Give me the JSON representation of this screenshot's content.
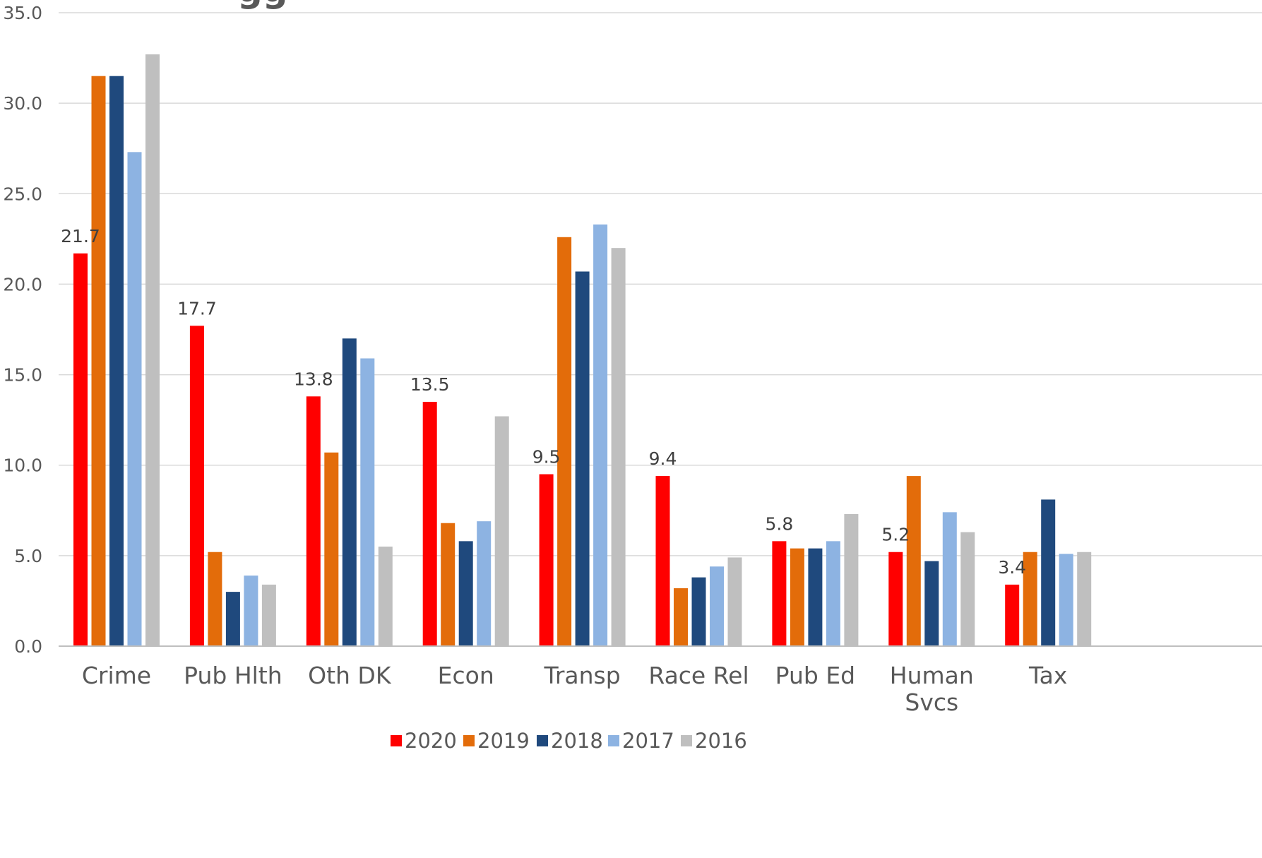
{
  "chart_data": {
    "type": "bar",
    "title": "",
    "xlabel": "",
    "ylabel": "",
    "ylim": [
      0,
      35
    ],
    "yticks": [
      "0.0",
      "5.0",
      "10.0",
      "15.0",
      "20.0",
      "25.0",
      "30.0",
      "35.0"
    ],
    "grid": true,
    "legend_position": "bottom",
    "categories": [
      [
        "Crime"
      ],
      [
        "Pub Hlth"
      ],
      [
        "Oth DK"
      ],
      [
        "Econ"
      ],
      [
        "Transp"
      ],
      [
        "Race Rel"
      ],
      [
        "Pub Ed"
      ],
      [
        "Human",
        "Svcs"
      ],
      [
        "Tax"
      ]
    ],
    "series": [
      {
        "name": "2020",
        "color": "#ff0000",
        "values": [
          21.7,
          17.7,
          13.8,
          13.5,
          9.5,
          9.4,
          5.8,
          5.2,
          3.4
        ],
        "show_labels": true
      },
      {
        "name": "2019",
        "color": "#e36c0a",
        "values": [
          31.5,
          5.2,
          10.7,
          6.8,
          22.6,
          3.2,
          5.4,
          9.4,
          5.2
        ],
        "show_labels": false
      },
      {
        "name": "2018",
        "color": "#1f497d",
        "values": [
          31.5,
          3.0,
          17.0,
          5.8,
          20.7,
          3.8,
          5.4,
          4.7,
          8.1
        ],
        "show_labels": false
      },
      {
        "name": "2017",
        "color": "#8db3e2",
        "values": [
          27.3,
          3.9,
          15.9,
          6.9,
          23.3,
          4.4,
          5.8,
          7.4,
          5.1
        ],
        "show_labels": false
      },
      {
        "name": "2016",
        "color": "#bfbfbf",
        "values": [
          32.7,
          3.4,
          5.5,
          12.7,
          22.0,
          4.9,
          7.3,
          6.3,
          5.2
        ],
        "show_labels": false
      }
    ],
    "data_labels": [
      "21.7",
      "17.7",
      "13.8",
      "13.5",
      "9.5",
      "9.4",
      "5.8",
      "5.2",
      "3.4"
    ]
  }
}
